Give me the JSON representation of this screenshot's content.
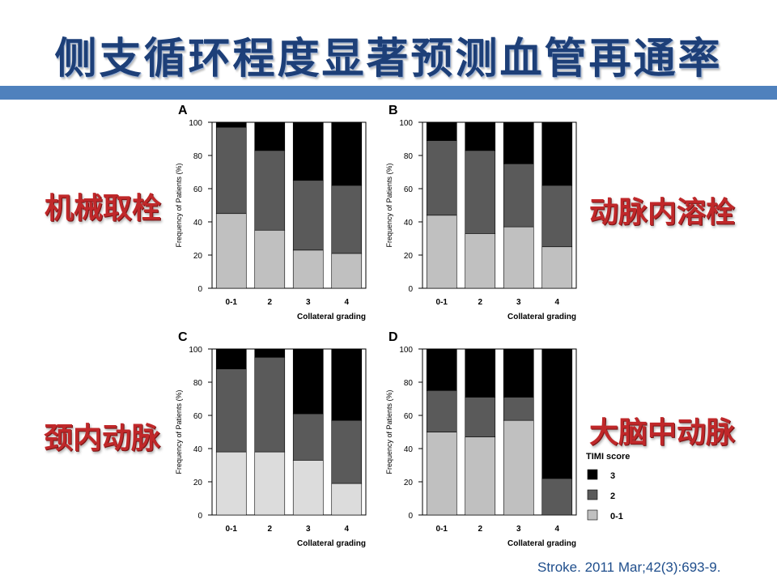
{
  "slide": {
    "title": "侧支循环程度显著预测血管再通率",
    "citation": "Stroke. 2011 Mar;42(3):693-9."
  },
  "tags": {
    "a": "机械取栓",
    "b": "动脉内溶栓",
    "c": "颈内动脉",
    "d": "大脑中动脉"
  },
  "colors": {
    "timi3": "#000000",
    "timi2": "#5a5a5a",
    "timi01_ab": "#c0c0c0",
    "timi01_c": "#dcdcdc",
    "timi01_d": "#c0c0c0",
    "title_bar": "#4f81bd"
  },
  "chart_data": [
    {
      "panel": "A",
      "type": "bar",
      "stacked": true,
      "categories": [
        "0-1",
        "2",
        "3",
        "4"
      ],
      "series": [
        {
          "name": "0-1",
          "values": [
            45,
            35,
            23,
            21
          ]
        },
        {
          "name": "2",
          "values": [
            52,
            48,
            42,
            41
          ]
        },
        {
          "name": "3",
          "values": [
            3,
            17,
            35,
            38
          ]
        }
      ],
      "xlabel": "Collateral grading",
      "ylabel": "Frequency of Patients (%)",
      "ylim": [
        0,
        100
      ],
      "yticks": [
        "0",
        "20",
        "40",
        "60",
        "80",
        "100"
      ]
    },
    {
      "panel": "B",
      "type": "bar",
      "stacked": true,
      "categories": [
        "0-1",
        "2",
        "3",
        "4"
      ],
      "series": [
        {
          "name": "0-1",
          "values": [
            44,
            33,
            37,
            25
          ]
        },
        {
          "name": "2",
          "values": [
            45,
            50,
            38,
            37
          ]
        },
        {
          "name": "3",
          "values": [
            11,
            17,
            25,
            38
          ]
        }
      ],
      "xlabel": "Collateral grading",
      "ylabel": "Frequency of Patients (%)",
      "ylim": [
        0,
        100
      ],
      "yticks": [
        "0",
        "20",
        "40",
        "60",
        "80",
        "100"
      ]
    },
    {
      "panel": "C",
      "type": "bar",
      "stacked": true,
      "categories": [
        "0-1",
        "2",
        "3",
        "4"
      ],
      "series": [
        {
          "name": "0-1",
          "values": [
            38,
            38,
            33,
            19
          ]
        },
        {
          "name": "2",
          "values": [
            50,
            57,
            28,
            38
          ]
        },
        {
          "name": "3",
          "values": [
            12,
            5,
            39,
            43
          ]
        }
      ],
      "xlabel": "Collateral grading",
      "ylabel": "Frequency of Patients (%)",
      "ylim": [
        0,
        100
      ],
      "yticks": [
        "0",
        "20",
        "40",
        "60",
        "80",
        "100"
      ]
    },
    {
      "panel": "D",
      "type": "bar",
      "stacked": true,
      "categories": [
        "0-1",
        "2",
        "3",
        "4"
      ],
      "series": [
        {
          "name": "0-1",
          "values": [
            50,
            47,
            57,
            0
          ]
        },
        {
          "name": "2",
          "values": [
            25,
            24,
            14,
            22
          ]
        },
        {
          "name": "3",
          "values": [
            25,
            29,
            29,
            78
          ]
        }
      ],
      "xlabel": "Collateral grading",
      "ylabel": "Frequency of Patients (%)",
      "ylim": [
        0,
        100
      ],
      "yticks": [
        "0",
        "20",
        "40",
        "60",
        "80",
        "100"
      ],
      "legend": {
        "title": "TIMI score",
        "placement": "right",
        "entries": [
          "3",
          "2",
          "0-1"
        ]
      }
    }
  ]
}
